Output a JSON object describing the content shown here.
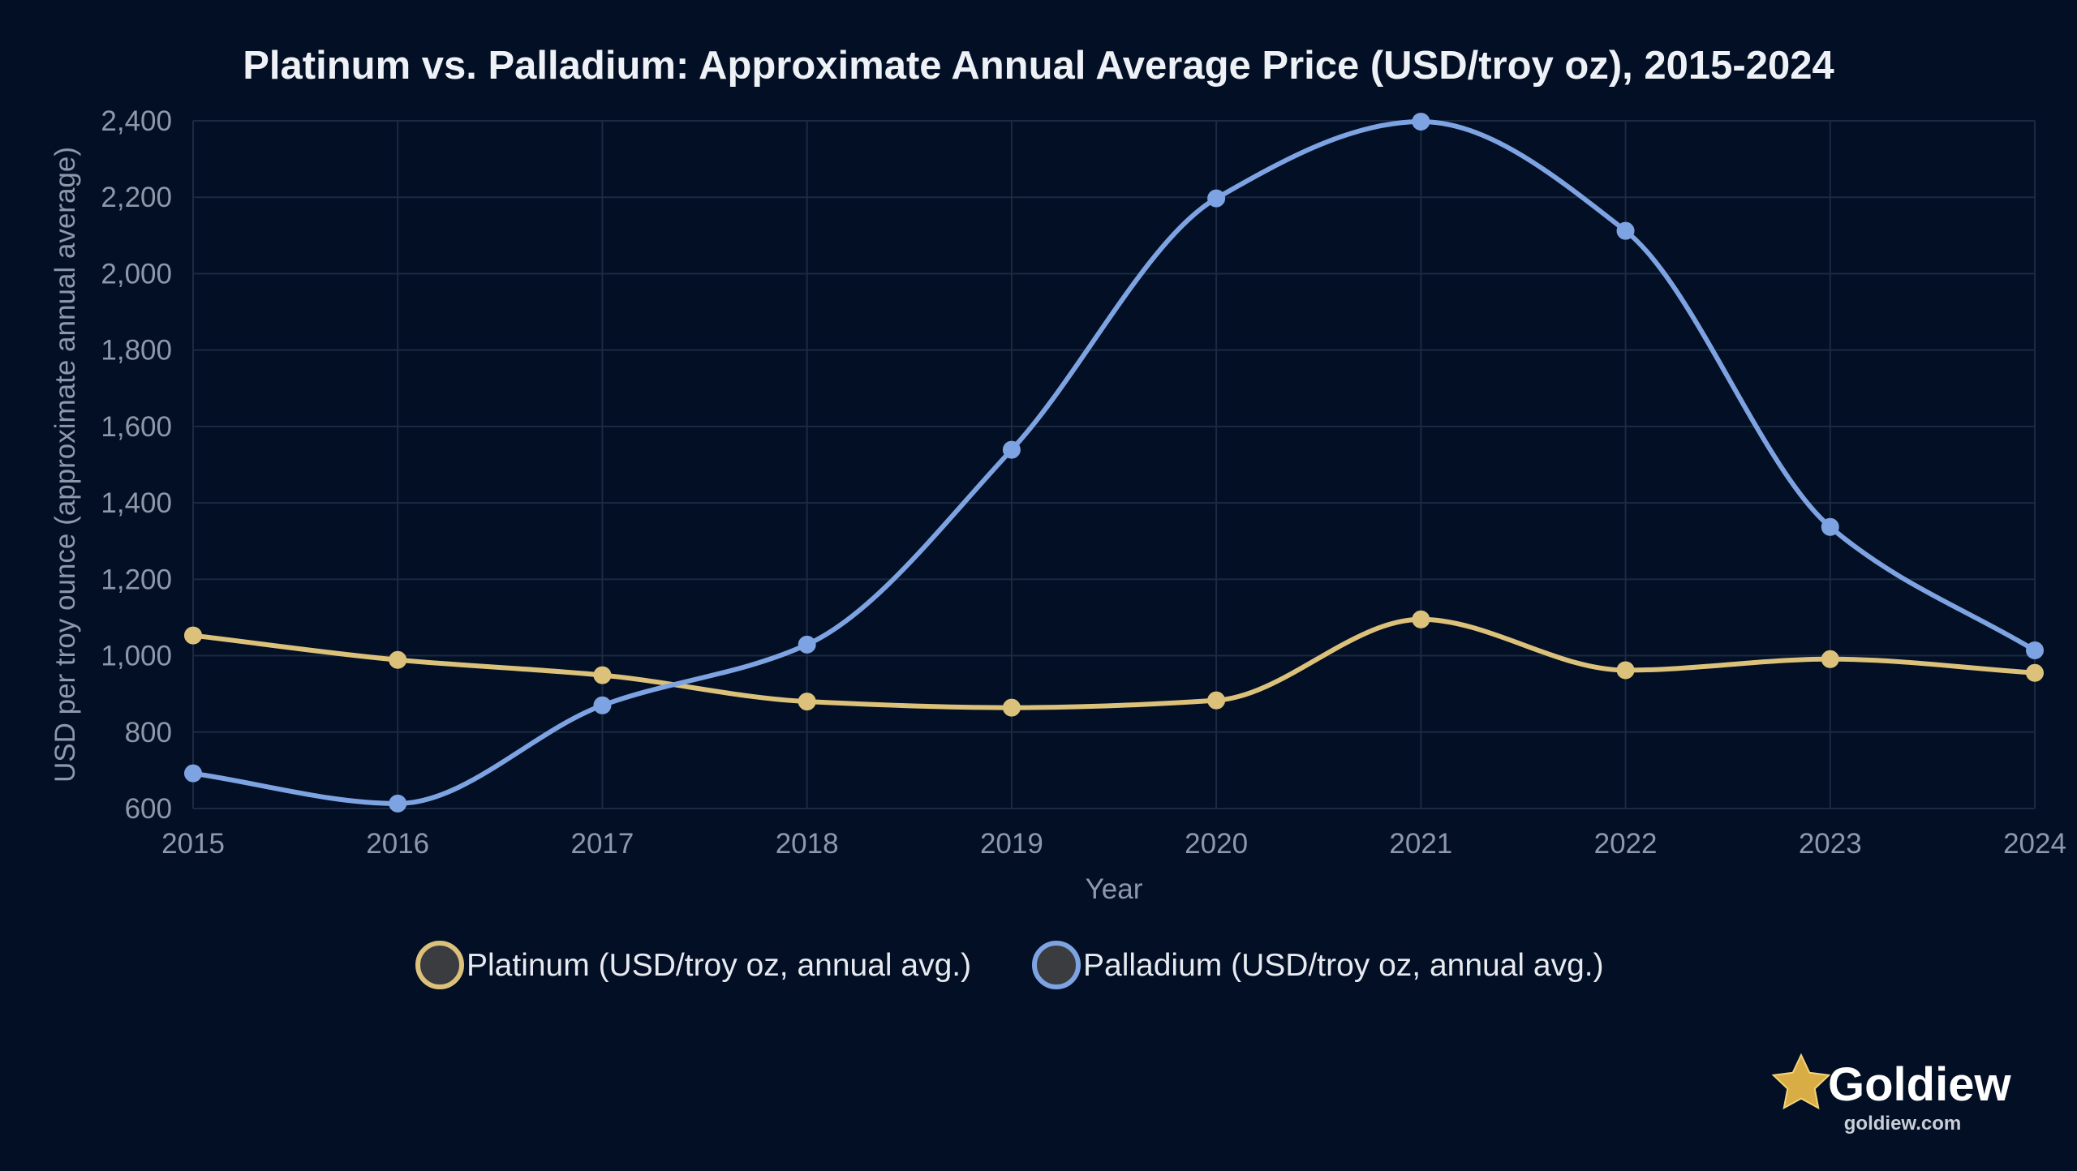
{
  "chart_data": {
    "type": "line",
    "title": "Platinum vs. Palladium: Approximate Annual Average Price (USD/troy oz), 2015-2024",
    "xlabel": "Year",
    "ylabel": "USD per troy ounce (approximate annual average)",
    "x": [
      "2015",
      "2016",
      "2017",
      "2018",
      "2019",
      "2020",
      "2021",
      "2022",
      "2023",
      "2024"
    ],
    "ylim": [
      600,
      2400
    ],
    "yticks": [
      600,
      800,
      1000,
      1200,
      1400,
      1600,
      1800,
      2000,
      2200,
      2400
    ],
    "ytick_labels": [
      "600",
      "800",
      "1,000",
      "1,200",
      "1,400",
      "1,600",
      "1,800",
      "2,000",
      "2,200",
      "2,400"
    ],
    "grid": true,
    "legend_position": "bottom",
    "series": [
      {
        "name": "Platinum (USD/troy oz, annual avg.)",
        "color": "#dcc17a",
        "values": [
          1053,
          989,
          949,
          880,
          864,
          883,
          1095,
          962,
          991,
          955
        ]
      },
      {
        "name": "Palladium (USD/troy oz, annual avg.)",
        "color": "#7ea3e2",
        "values": [
          692,
          613,
          870,
          1029,
          1539,
          2197,
          2398,
          2112,
          1337,
          1014
        ]
      }
    ]
  },
  "branding": {
    "name": "Goldiew",
    "url": "goldiew.com",
    "icon": "star-icon"
  },
  "colors": {
    "background": "#020f24",
    "grid": "#1b2a42",
    "platinum": "#dcc17a",
    "palladium": "#7ea3e2",
    "marker_fill": "#3a3c40"
  }
}
